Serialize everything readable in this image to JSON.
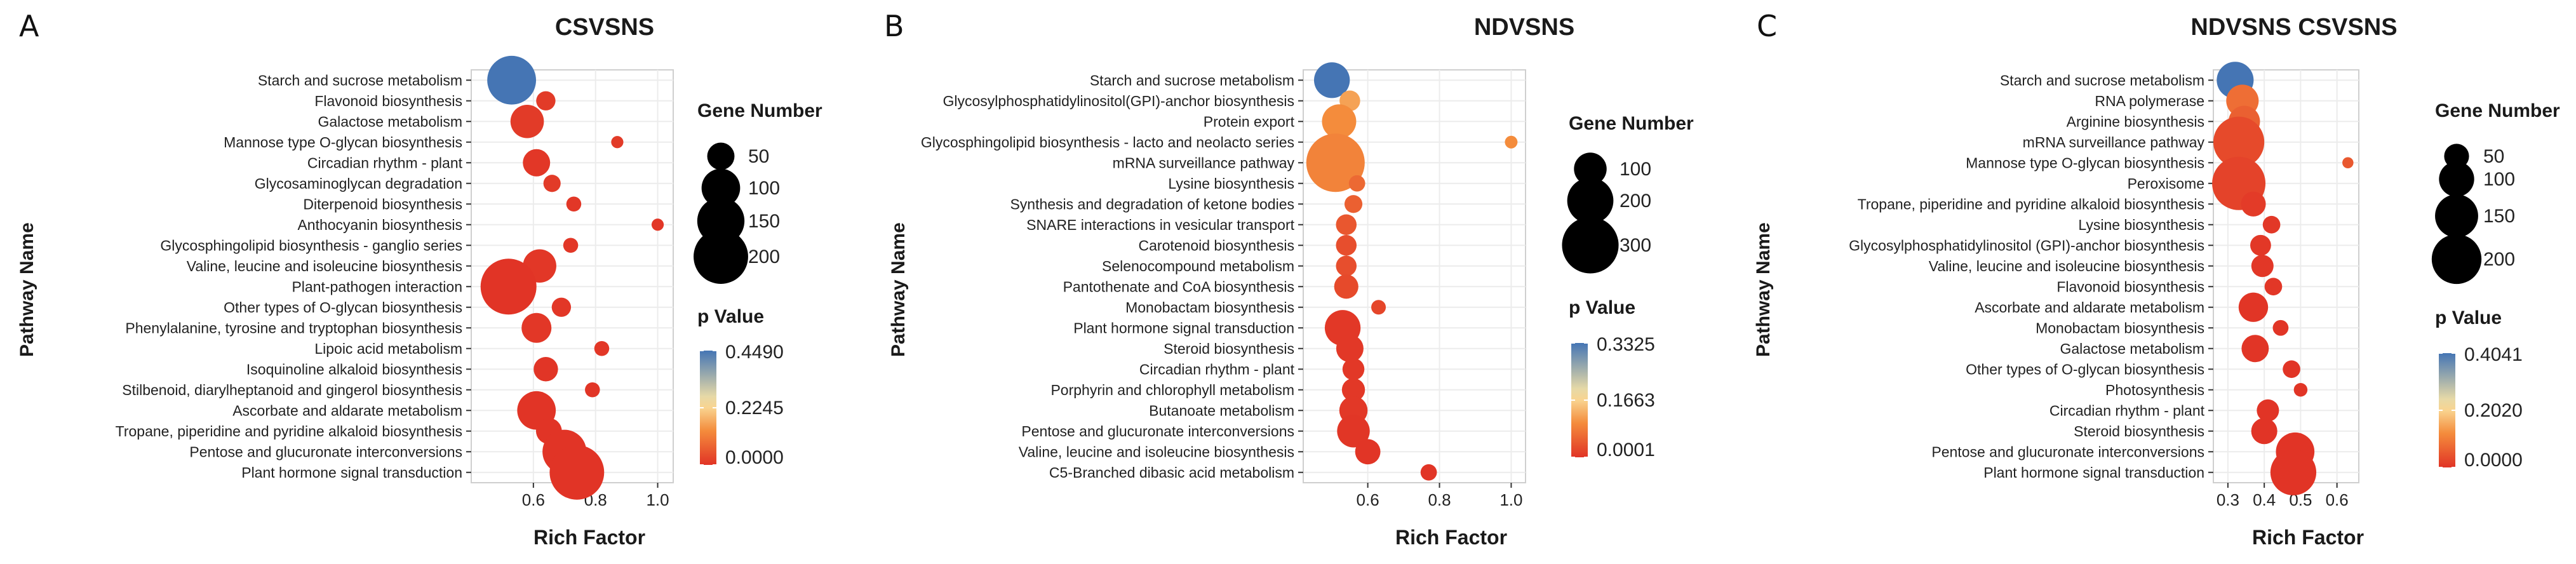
{
  "chart_data": [
    {
      "type": "scatter",
      "panel_letter": "A",
      "title": "CSVSNS",
      "xlabel": "Rich Factor",
      "ylabel": "Pathway Name",
      "xlim": [
        0.4,
        1.05
      ],
      "xticks": [
        0.6,
        0.8,
        1.0
      ],
      "xtick_labels": [
        "0.6",
        "0.8",
        "1.0"
      ],
      "size_legend_title": "Gene Number",
      "size_legend": [
        50,
        100,
        150,
        200
      ],
      "color_legend_title": "p Value",
      "color_legend": [
        "0.4490",
        "0.2245",
        "0.0000"
      ],
      "p_range": [
        0.0,
        0.449
      ],
      "categories": [
        "Starch and sucrose metabolism",
        "Flavonoid biosynthesis",
        "Galactose metabolism",
        "Mannose type O-glycan biosynthesis",
        "Circadian rhythm - plant",
        "Glycosaminoglycan degradation",
        "Diterpenoid biosynthesis",
        "Anthocyanin biosynthesis",
        "Glycosphingolipid biosynthesis - ganglio series",
        "Valine, leucine and isoleucine biosynthesis",
        "Plant-pathogen interaction",
        "Other types of O-glycan biosynthesis",
        "Phenylalanine, tyrosine and tryptophan biosynthesis",
        "Lipoic acid metabolism",
        "Isoquinoline alkaloid biosynthesis",
        "Stilbenoid, diarylheptanoid and gingerol biosynthesis",
        "Ascorbate and aldarate metabolism",
        "Tropane, piperidine and pyridine alkaloid biosynthesis",
        "Pentose and glucuronate interconversions",
        "Plant hormone signal transduction"
      ],
      "x": [
        0.53,
        0.64,
        0.58,
        0.87,
        0.61,
        0.66,
        0.73,
        1.0,
        0.72,
        0.62,
        0.52,
        0.69,
        0.61,
        0.82,
        0.64,
        0.79,
        0.61,
        0.65,
        0.7,
        0.74
      ],
      "gene_number": [
        160,
        25,
        75,
        10,
        50,
        20,
        15,
        10,
        15,
        75,
        210,
        25,
        60,
        15,
        40,
        15,
        100,
        45,
        130,
        200
      ],
      "p_value": [
        0.449,
        0.01,
        0.01,
        0.01,
        0.005,
        0.01,
        0.005,
        0.005,
        0.005,
        0.005,
        0.0,
        0.005,
        0.005,
        0.005,
        0.002,
        0.002,
        0.0,
        0.0,
        0.0,
        0.0
      ]
    },
    {
      "type": "scatter",
      "panel_letter": "B",
      "title": "NDVSNS",
      "xlabel": "Rich Factor",
      "ylabel": "Pathway Name",
      "xlim": [
        0.42,
        1.04
      ],
      "xticks": [
        0.6,
        0.8,
        1.0
      ],
      "xtick_labels": [
        "0.6",
        "0.8",
        "1.0"
      ],
      "size_legend_title": "Gene Number",
      "size_legend": [
        100,
        200,
        300
      ],
      "color_legend_title": "p Value",
      "color_legend": [
        "0.3325",
        "0.1663",
        "0.0001"
      ],
      "p_range": [
        0.0001,
        0.3325
      ],
      "categories": [
        "Starch and sucrose metabolism",
        "Glycosylphosphatidylinositol(GPI)-anchor biosynthesis",
        "Protein export",
        "Glycosphingolipid biosynthesis - lacto and neolacto series",
        "mRNA surveillance pathway",
        "Lysine biosynthesis",
        "Synthesis and degradation of ketone bodies",
        "SNARE interactions in vesicular transport",
        "Carotenoid biosynthesis",
        "Selenocompound metabolism",
        "Pantothenate and CoA biosynthesis",
        "Monobactam biosynthesis",
        "Plant hormone signal transduction",
        "Steroid biosynthesis",
        "Circadian rhythm - plant",
        "Porphyrin and chlorophyll metabolism",
        "Butanoate metabolism",
        "Pentose and glucuronate interconversions",
        "Valine, leucine and isoleucine biosynthesis",
        "C5-Branched dibasic acid metabolism"
      ],
      "x": [
        0.5,
        0.55,
        0.52,
        1.0,
        0.51,
        0.57,
        0.56,
        0.54,
        0.54,
        0.54,
        0.54,
        0.63,
        0.53,
        0.55,
        0.56,
        0.56,
        0.56,
        0.56,
        0.6,
        0.77
      ],
      "gene_number": [
        120,
        40,
        110,
        15,
        320,
        25,
        30,
        40,
        40,
        40,
        55,
        20,
        120,
        70,
        45,
        50,
        75,
        100,
        60,
        25
      ],
      "p_value": [
        0.3325,
        0.12,
        0.1,
        0.1,
        0.09,
        0.06,
        0.05,
        0.04,
        0.03,
        0.03,
        0.025,
        0.02,
        0.005,
        0.005,
        0.005,
        0.005,
        0.005,
        0.002,
        0.001,
        0.001
      ]
    },
    {
      "type": "scatter",
      "panel_letter": "C",
      "title": "NDVSNS CSVSNS",
      "xlabel": "Rich Factor",
      "ylabel": "Pathway Name",
      "xlim": [
        0.26,
        0.66
      ],
      "xticks": [
        0.3,
        0.4,
        0.5,
        0.6
      ],
      "xtick_labels": [
        "0.3",
        "0.4",
        "0.5",
        "0.6"
      ],
      "size_legend_title": "Gene Number",
      "size_legend": [
        50,
        100,
        150,
        200
      ],
      "color_legend_title": "p Value",
      "color_legend": [
        "0.4041",
        "0.2020",
        "0.0000"
      ],
      "p_range": [
        0.0,
        0.4041
      ],
      "categories": [
        "Starch and sucrose metabolism",
        "RNA polymerase",
        "Arginine biosynthesis",
        "mRNA surveillance pathway",
        "Mannose type O-glycan biosynthesis",
        "Peroxisome",
        "Tropane, piperidine and pyridine alkaloid biosynthesis",
        "Lysine biosynthesis",
        "Glycosylphosphatidylinositol (GPI)-anchor biosynthesis",
        "Valine, leucine and isoleucine biosynthesis",
        "Flavonoid biosynthesis",
        "Ascorbate and aldarate metabolism",
        "Monobactam biosynthesis",
        "Galactose metabolism",
        "Other types of O-glycan biosynthesis",
        "Photosynthesis",
        "Circadian rhythm - plant",
        "Steroid biosynthesis",
        "Pentose and glucuronate interconversions",
        "Plant hormone signal transduction"
      ],
      "x": [
        0.32,
        0.34,
        0.345,
        0.33,
        0.63,
        0.33,
        0.37,
        0.42,
        0.39,
        0.395,
        0.425,
        0.37,
        0.445,
        0.375,
        0.475,
        0.5,
        0.41,
        0.4,
        0.485,
        0.48
      ],
      "gene_number": [
        110,
        85,
        80,
        210,
        10,
        230,
        50,
        25,
        35,
        40,
        25,
        70,
        20,
        60,
        25,
        15,
        40,
        55,
        120,
        170
      ],
      "p_value": [
        0.4041,
        0.08,
        0.06,
        0.03,
        0.05,
        0.02,
        0.01,
        0.006,
        0.005,
        0.004,
        0.004,
        0.002,
        0.002,
        0.001,
        0.001,
        0.001,
        0.0005,
        0.0002,
        0.0,
        0.0
      ]
    }
  ]
}
